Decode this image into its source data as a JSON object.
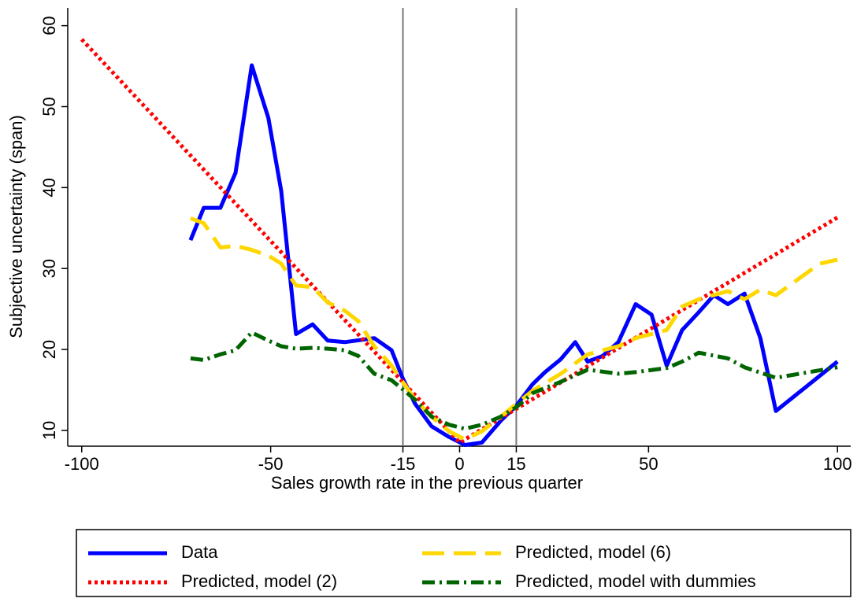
{
  "chart_data": {
    "type": "line",
    "x_label": "Sales growth rate in the previous quarter",
    "y_label": "Subjective uncertainty (span)",
    "xlim": [
      -103.7,
      103.5
    ],
    "ylim": [
      8.05,
      62.2
    ],
    "xticks": [
      -100,
      -50,
      -15,
      0,
      15,
      50,
      100
    ],
    "yticks": [
      10,
      20,
      30,
      40,
      50,
      60
    ],
    "vlines": [
      -15,
      15
    ],
    "legend": "bottom",
    "series": [
      {
        "name": "Data",
        "color": "#0000ff",
        "style": "solid",
        "x": [
          -71.2,
          -67.7,
          -63.3,
          -59.3,
          -55,
          -50.6,
          -47.2,
          -43.3,
          -38.9,
          -34.9,
          -30.4,
          -22.6,
          -18,
          -15.1,
          -11.8,
          -7.4,
          -2.8,
          1.4,
          5.9,
          10.9,
          15.1,
          19.3,
          22.6,
          26.8,
          30.6,
          33.9,
          37.9,
          42,
          46.6,
          50.8,
          54.8,
          58.9,
          63.3,
          67.3,
          71,
          75.4,
          79.6,
          83.7,
          100
        ],
        "values": [
          33.5,
          37.5,
          37.5,
          41.8,
          55.1,
          48.6,
          39.6,
          21.9,
          23.1,
          21.1,
          20.9,
          21.4,
          19.9,
          16.5,
          13.3,
          10.5,
          9.2,
          8.2,
          8.5,
          11.2,
          13.1,
          15.7,
          17.2,
          18.8,
          20.9,
          18.5,
          19.2,
          20.9,
          25.6,
          24.3,
          18,
          22.4,
          24.6,
          26.7,
          25.6,
          26.9,
          21.4,
          12.4,
          18.5
        ]
      },
      {
        "name": "Predicted, model (2)",
        "color": "#ff0000",
        "style": "dotted",
        "x": [
          -100,
          0,
          100
        ],
        "values": [
          58.3,
          8.5,
          36.3
        ]
      },
      {
        "name": "Predicted, model (6)",
        "color": "#ffd700",
        "style": "dashed",
        "x": [
          -71.2,
          -67.7,
          -63.3,
          -59.3,
          -55,
          -50.6,
          -47.2,
          -43.3,
          -38.9,
          -34.9,
          -30.4,
          -26.8,
          -22.6,
          -18,
          -11.8,
          -7.4,
          -2.8,
          1.4,
          5.9,
          10.9,
          15.1,
          19.3,
          26.8,
          33.9,
          37.9,
          42,
          46.6,
          54.8,
          58.9,
          63.3,
          71,
          75.4,
          79.6,
          83.7,
          95.3,
          100
        ],
        "values": [
          36.2,
          35.6,
          32.6,
          32.8,
          32.3,
          31.6,
          30.6,
          27.9,
          27.7,
          25.8,
          24.8,
          23.5,
          20.4,
          18,
          13.8,
          11.7,
          9.9,
          8.9,
          9.9,
          11.7,
          13.3,
          14.9,
          17,
          19.4,
          19.9,
          20.4,
          21.4,
          22.4,
          25.3,
          26.2,
          27.2,
          26.2,
          27.4,
          26.7,
          30.6,
          31.1
        ]
      },
      {
        "name": "Predicted, model with dummies",
        "color": "#006400",
        "style": "dashdot",
        "x": [
          -71.2,
          -67.7,
          -63.3,
          -59.3,
          -55,
          -50.6,
          -47.2,
          -43.3,
          -38.9,
          -34.9,
          -30.4,
          -26.8,
          -22.6,
          -18,
          -15.1,
          -11.8,
          -7.4,
          -2.8,
          1.4,
          5.9,
          10.9,
          15.1,
          19.3,
          26.8,
          33.9,
          42,
          46.6,
          54.8,
          58.9,
          63.3,
          71,
          75.4,
          83.7,
          100
        ],
        "values": [
          18.9,
          18.7,
          19.4,
          19.9,
          22.1,
          21.1,
          20.4,
          20.1,
          20.2,
          20.1,
          19.9,
          19.2,
          17,
          16.2,
          15.1,
          13.8,
          11.7,
          10.7,
          10.2,
          10.7,
          11.7,
          12.9,
          14.6,
          16,
          17.5,
          17,
          17.2,
          17.7,
          18.5,
          19.6,
          18.9,
          17.8,
          16.5,
          17.8
        ]
      }
    ]
  }
}
